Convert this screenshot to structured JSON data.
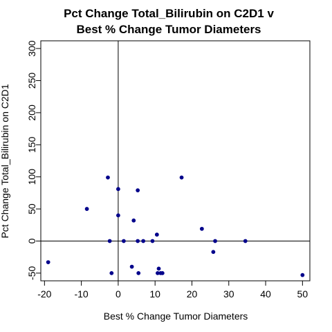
{
  "chart_data": {
    "type": "scatter",
    "title": [
      "Pct Change Total_Bilirubin on C2D1 v",
      "Best % Change Tumor Diameters"
    ],
    "xlabel": "Best % Change Tumor Diameters",
    "ylabel": "Pct Change Total_Bilirubin on C2D1",
    "xlim": [
      -21,
      52
    ],
    "ylim": [
      -62,
      312
    ],
    "xticks": [
      -20,
      -10,
      0,
      10,
      20,
      30,
      40,
      50
    ],
    "yticks": [
      -50,
      0,
      50,
      100,
      150,
      200,
      250,
      300
    ],
    "reference_lines": {
      "x": 0,
      "y": 0
    },
    "grid": false,
    "point_color": "#00008B",
    "points": [
      {
        "x": -19.0,
        "y": -33
      },
      {
        "x": -8.5,
        "y": 50
      },
      {
        "x": -2.8,
        "y": 99
      },
      {
        "x": -2.3,
        "y": 0
      },
      {
        "x": -1.8,
        "y": -50
      },
      {
        "x": 0.0,
        "y": 81
      },
      {
        "x": 0.0,
        "y": 40
      },
      {
        "x": 1.5,
        "y": 0
      },
      {
        "x": 3.7,
        "y": -40
      },
      {
        "x": 4.2,
        "y": 32
      },
      {
        "x": 5.3,
        "y": 79
      },
      {
        "x": 5.3,
        "y": 0
      },
      {
        "x": 5.5,
        "y": -50
      },
      {
        "x": 6.8,
        "y": 0
      },
      {
        "x": 9.3,
        "y": 0
      },
      {
        "x": 10.5,
        "y": 10
      },
      {
        "x": 10.7,
        "y": -50
      },
      {
        "x": 11.0,
        "y": -43
      },
      {
        "x": 11.5,
        "y": -50
      },
      {
        "x": 12.0,
        "y": -50
      },
      {
        "x": 17.2,
        "y": 99
      },
      {
        "x": 22.7,
        "y": 19
      },
      {
        "x": 25.8,
        "y": -17
      },
      {
        "x": 26.3,
        "y": 0
      },
      {
        "x": 34.5,
        "y": 0
      },
      {
        "x": 50.0,
        "y": -53
      }
    ]
  }
}
